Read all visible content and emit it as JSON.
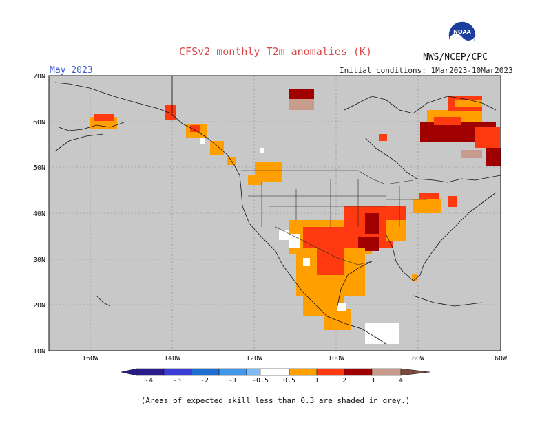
{
  "header": {
    "title": "CFSv2 monthly T2m anomalies (K)",
    "month": "May 2023",
    "initial_conditions": "Initial conditions: 1Mar2023-10Mar2023",
    "agency": "NWS/NCEP/CPC",
    "logo_text": "NOAA"
  },
  "map": {
    "lat_ticks": [
      "70N",
      "60N",
      "50N",
      "40N",
      "30N",
      "20N",
      "10N"
    ],
    "lon_ticks": [
      "160W",
      "140W",
      "120W",
      "100W",
      "80W",
      "60W"
    ],
    "lat_range": [
      10,
      70
    ],
    "lon_range": [
      -170,
      -60
    ],
    "background_color": "#c8c8c8"
  },
  "legend": {
    "labels": [
      "-4",
      "-3",
      "-2",
      "-1",
      "-0.5",
      "0.5",
      "1",
      "2",
      "3",
      "4"
    ],
    "colors": [
      "#2a1b8c",
      "#3b3bd6",
      "#1e6fd0",
      "#3f96ea",
      "#7fbcf4",
      "#ffffff",
      "#ff9f00",
      "#ff3a10",
      "#a00000",
      "#c89c8c",
      "#7a4a3a"
    ]
  },
  "footer": {
    "note": "(Areas of expected skill less than 0.3 are shaded in grey.)"
  }
}
